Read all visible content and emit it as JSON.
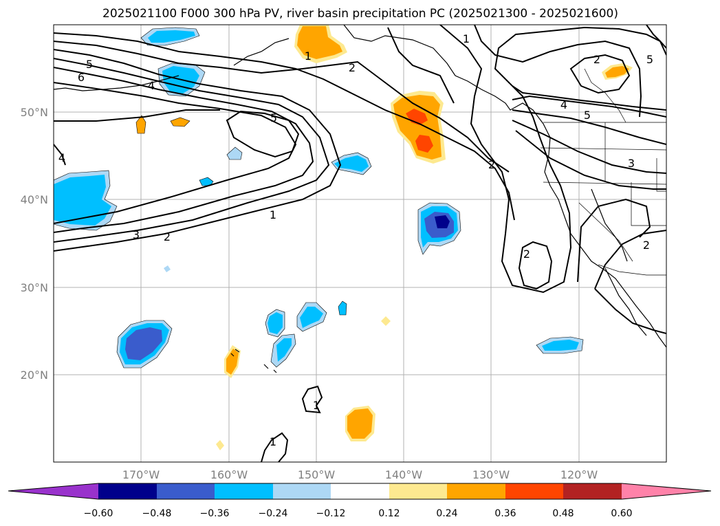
{
  "title": "2025021100 F000 300 hPa PV, river basin precipitation PC (2025021300 - 2025021600)",
  "map": {
    "lat_labels": [
      "50°N",
      "40°N",
      "30°N",
      "20°N"
    ],
    "lon_labels": [
      "170°W",
      "160°W",
      "150°W",
      "140°W",
      "130°W",
      "120°W"
    ]
  },
  "colorbar": {
    "ticks": [
      "−0.60",
      "−0.48",
      "−0.36",
      "−0.24",
      "−0.12",
      "0.12",
      "0.24",
      "0.36",
      "0.48",
      "0.60"
    ],
    "colors": {
      "lt_-0.60": "#9932cc",
      "-0.60_-0.48": "#00008b",
      "-0.48_-0.36": "#3a5ccc",
      "-0.36_-0.24": "#00bfff",
      "-0.24_-0.12": "#add8f5",
      "-0.12_0.12": "#ffffff",
      "0.12_0.24": "#fde990",
      "0.24_0.36": "#ffa500",
      "0.36_0.48": "#ff4500",
      "0.48_0.60": "#b22222",
      "gt_0.60": "#ff82a9"
    }
  },
  "contour_labels": [
    "1",
    "2",
    "5",
    "4",
    "6",
    "5",
    "4",
    "1",
    "2",
    "3",
    "1",
    "2",
    "1",
    "2",
    "2",
    "4",
    "5",
    "3",
    "2",
    "2",
    "2",
    "5",
    "1"
  ]
}
